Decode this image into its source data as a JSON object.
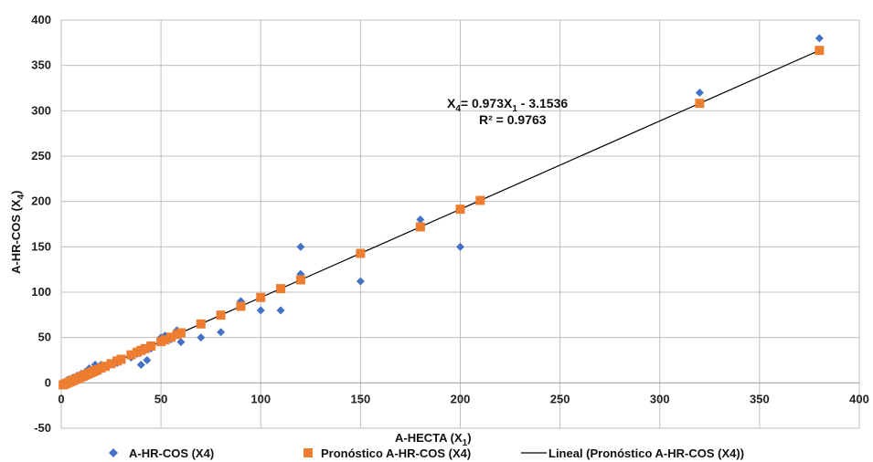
{
  "chart_data": {
    "type": "scatter",
    "xlabel": "A-HECTA (X",
    "xlabel_sub": "1",
    "xlabel_close": ")",
    "ylabel": "A-HR-COS  (X",
    "ylabel_sub": "4",
    "ylabel_close": ")",
    "xlim": [
      0,
      400
    ],
    "ylim": [
      -50,
      400
    ],
    "xticks": [
      "0",
      "50",
      "100",
      "150",
      "200",
      "250",
      "300",
      "350",
      "400"
    ],
    "yticks": [
      "-50",
      "0",
      "50",
      "100",
      "150",
      "200",
      "250",
      "300",
      "350",
      "400"
    ],
    "grid": true,
    "legend_position": "bottom",
    "colors": {
      "observed": "#4472C4",
      "forecast": "#ED7D31",
      "trend": "#000000",
      "grid": "#BFBFBF"
    },
    "series": [
      {
        "name": "A-HR-COS   (X4)",
        "marker": "diamond",
        "x": [
          1,
          2,
          3,
          4,
          5,
          6,
          7,
          8,
          9,
          10,
          11,
          12,
          13,
          14,
          15,
          16,
          17,
          18,
          20,
          22,
          25,
          28,
          30,
          35,
          38,
          40,
          42,
          43,
          45,
          50,
          52,
          55,
          58,
          60,
          70,
          80,
          90,
          100,
          110,
          120,
          120,
          150,
          180,
          200,
          320,
          380
        ],
        "y": [
          0,
          1,
          3,
          4,
          4,
          6,
          5,
          8,
          8,
          10,
          9,
          12,
          10,
          16,
          12,
          15,
          20,
          18,
          20,
          18,
          20,
          22,
          26,
          28,
          32,
          20,
          36,
          25,
          38,
          50,
          52,
          48,
          58,
          45,
          50,
          56,
          90,
          80,
          80,
          150,
          120,
          112,
          180,
          150,
          320,
          380
        ]
      },
      {
        "name": "Pronóstico A-HR-COS   (X4)",
        "marker": "square",
        "x": [
          1,
          2,
          3,
          4,
          5,
          6,
          7,
          8,
          9,
          10,
          11,
          12,
          13,
          14,
          15,
          16,
          17,
          18,
          20,
          22,
          25,
          28,
          30,
          35,
          38,
          40,
          42,
          45,
          50,
          52,
          55,
          58,
          60,
          70,
          80,
          90,
          100,
          110,
          120,
          150,
          180,
          200,
          210,
          320,
          380
        ],
        "y": [
          -2.18,
          -1.21,
          -0.23,
          0.74,
          1.71,
          2.68,
          3.66,
          4.63,
          5.6,
          6.58,
          7.55,
          8.52,
          9.49,
          10.47,
          11.44,
          12.41,
          13.39,
          14.36,
          16.31,
          18.25,
          21.17,
          24.09,
          26.04,
          30.9,
          33.82,
          35.77,
          37.71,
          40.63,
          45.5,
          47.45,
          50.37,
          53.29,
          55.23,
          64.96,
          74.69,
          84.42,
          94.15,
          103.88,
          113.61,
          142.8,
          171.99,
          191.45,
          201.18,
          308.2,
          366.58
        ]
      }
    ],
    "trendline": {
      "name": "Lineal (Pronóstico A-HR-COS   (X4))",
      "slope": 0.973,
      "intercept": -3.1536,
      "x_range": [
        1,
        380
      ],
      "equation_parts": [
        "X",
        "4",
        "= 0.973X",
        "1",
        " - 3.1536"
      ],
      "r2_label": "R² = 0.9763"
    }
  }
}
